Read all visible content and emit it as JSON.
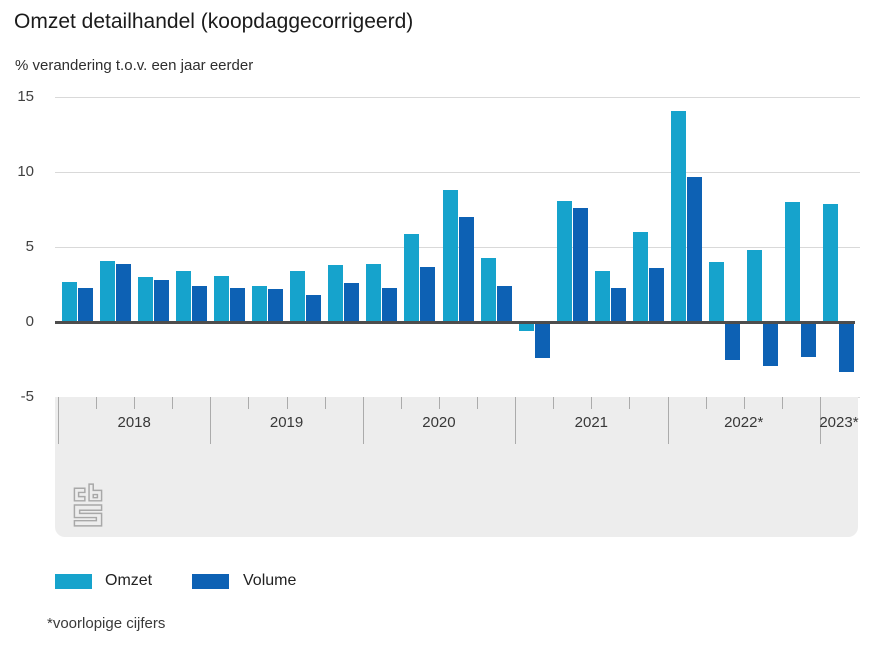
{
  "title": "Omzet detailhandel (koopdaggecorrigeerd)",
  "subtitle": "% verandering t.o.v. een jaar eerder",
  "footnote": "*voorlopige cijfers",
  "legend": {
    "omzet_label": "Omzet",
    "volume_label": "Volume"
  },
  "colors": {
    "omzet": "#16a3cc",
    "volume": "#0d61b4",
    "zero_axis": "#4d4d4d",
    "gridline": "#d9d9d9",
    "axis_band": "#ededed",
    "tick": "#ababab",
    "logo_gray": "#a8a8a8"
  },
  "chart_data": {
    "type": "bar",
    "title": "Omzet detailhandel (koopdaggecorrigeerd)",
    "subtitle": "% verandering t.o.v. een jaar eerder",
    "ylabel": "% verandering t.o.v. een jaar eerder",
    "ylim": [
      -5,
      15
    ],
    "yticks": [
      15,
      10,
      5,
      0,
      -5
    ],
    "grid": true,
    "legend_position": "bottom",
    "years": [
      {
        "label": "2018",
        "quarters": 4
      },
      {
        "label": "2019",
        "quarters": 4
      },
      {
        "label": "2020",
        "quarters": 4
      },
      {
        "label": "2021",
        "quarters": 4
      },
      {
        "label": "2022*",
        "quarters": 4
      },
      {
        "label": "2023*",
        "quarters": 1
      }
    ],
    "categories": [
      "2018 Q1",
      "2018 Q2",
      "2018 Q3",
      "2018 Q4",
      "2019 Q1",
      "2019 Q2",
      "2019 Q3",
      "2019 Q4",
      "2020 Q1",
      "2020 Q2",
      "2020 Q3",
      "2020 Q4",
      "2021 Q1",
      "2021 Q2",
      "2021 Q3",
      "2021 Q4",
      "2022 Q1",
      "2022 Q2",
      "2022 Q3",
      "2022 Q4",
      "2023 Q1"
    ],
    "series": [
      {
        "name": "Omzet",
        "color": "#16a3cc",
        "values": [
          2.7,
          4.1,
          3.0,
          3.4,
          3.1,
          2.4,
          3.4,
          3.8,
          3.9,
          5.9,
          8.8,
          4.3,
          -0.5,
          8.1,
          3.4,
          6.0,
          14.1,
          4.0,
          4.8,
          8.0,
          7.9
        ]
      },
      {
        "name": "Volume",
        "color": "#0d61b4",
        "values": [
          2.3,
          3.9,
          2.8,
          2.4,
          2.3,
          2.2,
          1.8,
          2.6,
          2.3,
          3.7,
          7.0,
          2.4,
          -2.3,
          7.6,
          2.3,
          3.6,
          9.7,
          -2.4,
          -2.8,
          -2.2,
          -3.2
        ]
      }
    ]
  }
}
